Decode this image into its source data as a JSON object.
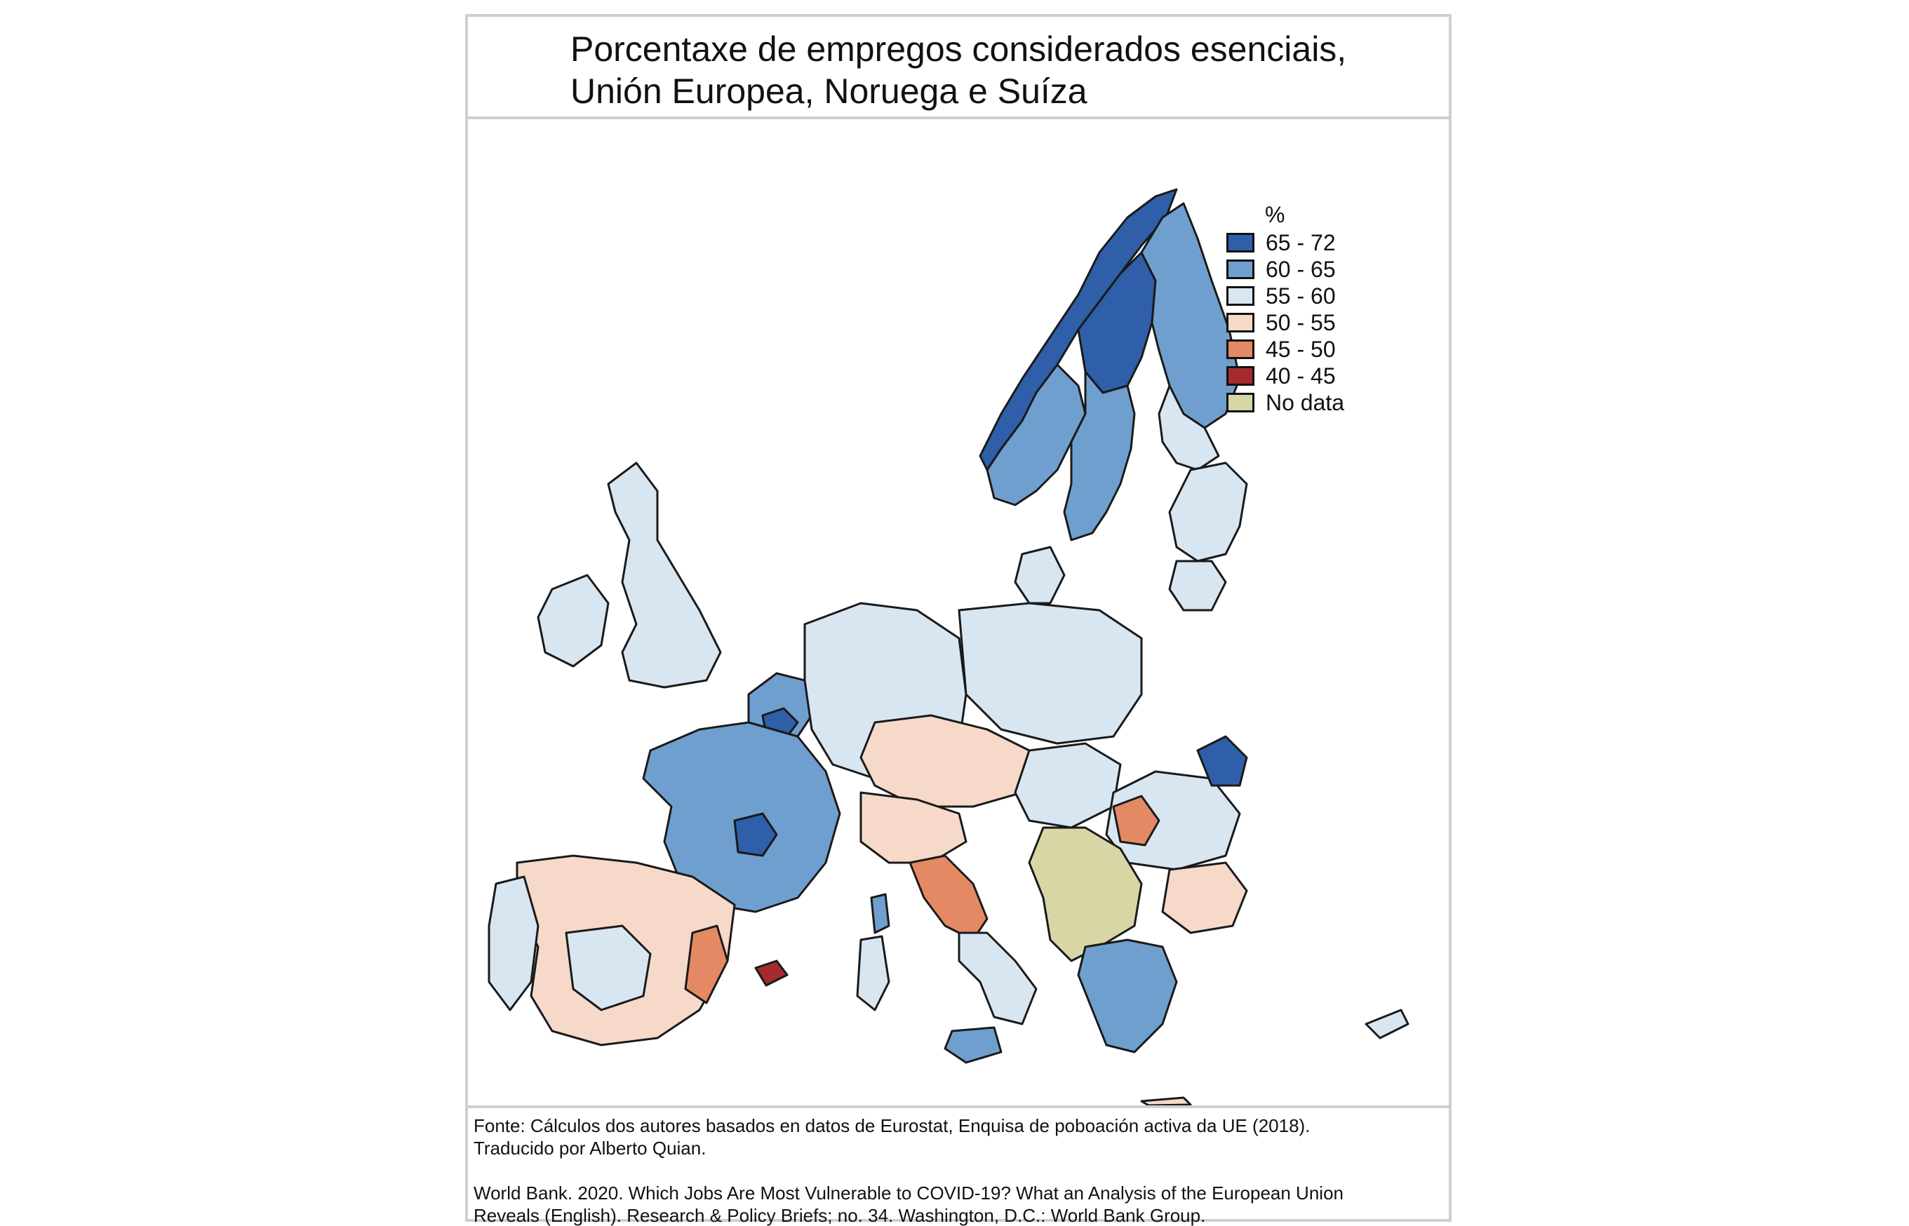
{
  "title": {
    "line1": "Porcentaxe de empregos considerados esenciais,",
    "line2": "Unión Europea, Noruega e Suíza"
  },
  "legend": {
    "title": "%",
    "items": [
      {
        "label": "65 - 72",
        "color": "#2e5fa8"
      },
      {
        "label": "60 - 65",
        "color": "#6f9fce"
      },
      {
        "label": "55 - 60",
        "color": "#d8e6f2"
      },
      {
        "label": "50 - 55",
        "color": "#f6d9c9"
      },
      {
        "label": "45 - 50",
        "color": "#e38a64"
      },
      {
        "label": "40 - 45",
        "color": "#a52a2e"
      },
      {
        "label": "No data",
        "color": "#d9d6a6"
      }
    ]
  },
  "map": {
    "sea_color": "#ffffff",
    "border_color": "#1a1a1a",
    "regions": [
      {
        "name": "norway-north",
        "class": "65 - 72"
      },
      {
        "name": "sweden-north",
        "class": "65 - 72"
      },
      {
        "name": "finland",
        "class": "60 - 65"
      },
      {
        "name": "finland-south",
        "class": "55 - 60"
      },
      {
        "name": "norway-south",
        "class": "60 - 65"
      },
      {
        "name": "sweden-south",
        "class": "60 - 65"
      },
      {
        "name": "estonia-latvia",
        "class": "55 - 60"
      },
      {
        "name": "lithuania",
        "class": "55 - 60"
      },
      {
        "name": "ireland",
        "class": "55 - 60"
      },
      {
        "name": "uk",
        "class": "55 - 60"
      },
      {
        "name": "denmark",
        "class": "55 - 60"
      },
      {
        "name": "benelux",
        "class": "60 - 65"
      },
      {
        "name": "belgium-brussels",
        "class": "65 - 72"
      },
      {
        "name": "france",
        "class": "60 - 65"
      },
      {
        "name": "france-center",
        "class": "65 - 72"
      },
      {
        "name": "germany",
        "class": "55 - 60"
      },
      {
        "name": "poland",
        "class": "55 - 60"
      },
      {
        "name": "czech-austria",
        "class": "50 - 55"
      },
      {
        "name": "slovakia-hungary",
        "class": "55 - 60"
      },
      {
        "name": "romania",
        "class": "55 - 60"
      },
      {
        "name": "romania-ne",
        "class": "65 - 72"
      },
      {
        "name": "romania-west",
        "class": "45 - 50"
      },
      {
        "name": "bulgaria",
        "class": "50 - 55"
      },
      {
        "name": "balkans-nodata",
        "class": "No data"
      },
      {
        "name": "greece",
        "class": "60 - 65"
      },
      {
        "name": "italy-north",
        "class": "50 - 55"
      },
      {
        "name": "italy-center",
        "class": "45 - 50"
      },
      {
        "name": "italy-south",
        "class": "55 - 60"
      },
      {
        "name": "sicily",
        "class": "60 - 65"
      },
      {
        "name": "sardinia",
        "class": "55 - 60"
      },
      {
        "name": "corsica",
        "class": "60 - 65"
      },
      {
        "name": "spain",
        "class": "50 - 55"
      },
      {
        "name": "spain-center",
        "class": "55 - 60"
      },
      {
        "name": "spain-east",
        "class": "45 - 50"
      },
      {
        "name": "portugal",
        "class": "55 - 60"
      },
      {
        "name": "balearic",
        "class": "40 - 45"
      },
      {
        "name": "cyprus",
        "class": "55 - 60"
      },
      {
        "name": "crete",
        "class": "50 - 55"
      }
    ]
  },
  "footer": {
    "line1": "Fonte: Cálculos dos autores basados en datos de Eurostat, Enquisa de poboación activa da UE (2018).",
    "line2": "Traducido por Alberto Quian.",
    "line3": "World Bank. 2020. Which Jobs Are Most Vulnerable to COVID-19? What an Analysis of the European Union",
    "line4": "Reveals (English). Research & Policy Briefs; no. 34. Washington, D.C.: World Bank Group."
  }
}
